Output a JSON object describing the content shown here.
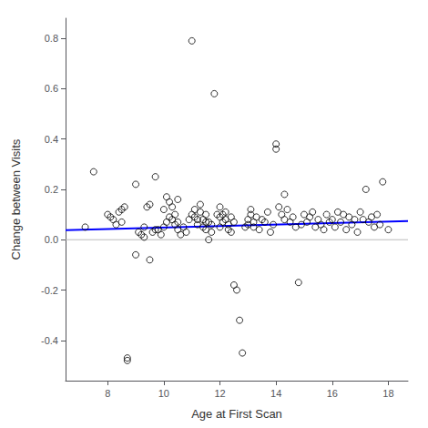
{
  "chart_data": {
    "type": "scatter",
    "xlabel": "Age at First Scan",
    "ylabel": "Change between Visits",
    "xlim": [
      6.5,
      18.7
    ],
    "ylim": [
      -0.56,
      0.88
    ],
    "xticks": [
      8,
      10,
      12,
      14,
      16,
      18
    ],
    "yticks": [
      -0.4,
      -0.2,
      {
        "value": 0.0,
        "label": "0.0"
      },
      0.2,
      0.4,
      0.6,
      0.8
    ],
    "grid": false,
    "series": [
      {
        "type": "scatter",
        "marker": "open circle",
        "color": "#000000",
        "x": [
          7.2,
          7.5,
          8.0,
          8.1,
          8.2,
          8.3,
          8.4,
          8.5,
          8.5,
          8.6,
          8.7,
          8.7,
          9.0,
          9.0,
          9.1,
          9.2,
          9.3,
          9.3,
          9.4,
          9.5,
          9.5,
          9.6,
          9.7,
          9.7,
          9.8,
          9.9,
          10.0,
          10.0,
          10.1,
          10.1,
          10.2,
          10.2,
          10.3,
          10.3,
          10.4,
          10.4,
          10.5,
          10.5,
          10.5,
          10.6,
          10.7,
          10.8,
          10.9,
          11.0,
          11.0,
          11.1,
          11.1,
          11.2,
          11.2,
          11.3,
          11.3,
          11.4,
          11.4,
          11.5,
          11.5,
          11.5,
          11.6,
          11.6,
          11.7,
          11.7,
          11.8,
          11.9,
          12.0,
          12.0,
          12.0,
          12.1,
          12.1,
          12.2,
          12.2,
          12.3,
          12.3,
          12.4,
          12.4,
          12.5,
          12.5,
          12.6,
          12.7,
          12.8,
          12.9,
          13.0,
          13.0,
          13.1,
          13.1,
          13.2,
          13.2,
          13.3,
          13.4,
          13.5,
          13.6,
          13.7,
          13.8,
          13.9,
          14.0,
          14.0,
          14.1,
          14.2,
          14.3,
          14.3,
          14.4,
          14.5,
          14.6,
          14.7,
          14.8,
          14.9,
          15.0,
          15.1,
          15.2,
          15.3,
          15.4,
          15.5,
          15.6,
          15.7,
          15.8,
          15.9,
          16.0,
          16.1,
          16.2,
          16.3,
          16.4,
          16.5,
          16.6,
          16.7,
          16.8,
          16.9,
          17.0,
          17.1,
          17.2,
          17.3,
          17.4,
          17.5,
          17.6,
          17.7,
          17.8,
          18.0
        ],
        "values": [
          0.05,
          0.27,
          0.1,
          0.09,
          0.08,
          0.06,
          0.11,
          0.07,
          0.12,
          0.13,
          -0.47,
          -0.48,
          0.22,
          -0.06,
          0.03,
          0.02,
          0.05,
          0.01,
          0.13,
          0.14,
          -0.08,
          0.03,
          0.25,
          0.04,
          0.04,
          0.02,
          0.12,
          0.05,
          0.07,
          0.17,
          0.09,
          0.15,
          0.08,
          0.13,
          0.06,
          0.1,
          0.16,
          0.04,
          0.07,
          0.02,
          0.05,
          0.03,
          0.08,
          0.79,
          0.1,
          0.12,
          0.09,
          0.06,
          0.08,
          0.14,
          0.11,
          0.05,
          0.08,
          0.07,
          0.1,
          0.04,
          0.07,
          0.0,
          0.06,
          0.03,
          0.58,
          0.1,
          0.09,
          0.13,
          0.05,
          0.07,
          0.1,
          0.08,
          0.11,
          0.06,
          0.04,
          0.09,
          0.03,
          -0.18,
          0.07,
          -0.2,
          -0.32,
          -0.45,
          0.05,
          0.08,
          0.06,
          0.1,
          0.12,
          0.07,
          0.05,
          0.09,
          0.04,
          0.08,
          0.07,
          0.11,
          0.03,
          0.06,
          0.38,
          0.36,
          0.13,
          0.1,
          0.08,
          0.18,
          0.12,
          0.07,
          0.09,
          0.05,
          -0.17,
          0.06,
          0.1,
          0.07,
          0.09,
          0.11,
          0.05,
          0.08,
          0.06,
          0.04,
          0.1,
          0.07,
          0.08,
          0.05,
          0.11,
          0.07,
          0.1,
          0.04,
          0.09,
          0.06,
          0.08,
          0.03,
          0.11,
          0.08,
          0.2,
          0.07,
          0.09,
          0.05,
          0.1,
          0.06,
          0.23,
          0.04
        ]
      },
      {
        "type": "line",
        "line_style": "solid",
        "color": "#BBBBBB",
        "x": [
          6.5,
          18.7
        ],
        "values": [
          0,
          0
        ]
      },
      {
        "type": "line",
        "line_style": "solid",
        "color": "#0000FF",
        "x": [
          6.5,
          18.7
        ],
        "values": [
          0.0375,
          0.0741
        ]
      }
    ]
  }
}
